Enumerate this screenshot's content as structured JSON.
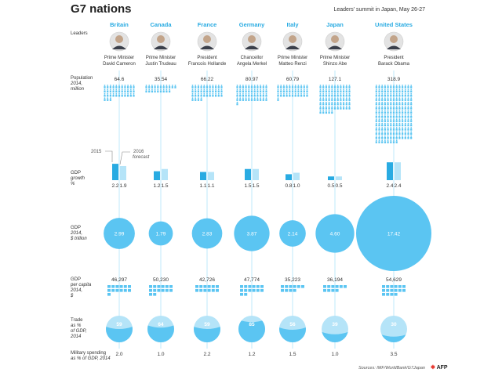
{
  "header": {
    "title": "G7 nations",
    "subtitle": "Leaders' summit in Japan, May 26-27",
    "source": "Sources: IMF/WorldBank/G7Japan",
    "logo": "AFP"
  },
  "row_labels": {
    "leaders": [
      "Leaders"
    ],
    "population": [
      "Population",
      "2014,",
      "million"
    ],
    "growth": [
      "GDP",
      "growth",
      "%"
    ],
    "gdp": [
      "GDP",
      "2014,",
      "$ trillion"
    ],
    "per_capita": [
      "GDP",
      "per capita",
      "2014,",
      "$"
    ],
    "trade": [
      "Trade",
      "as %",
      "of GDP,",
      "2014"
    ],
    "military": [
      "Military spending",
      "as % of GDP, 2014"
    ]
  },
  "growth_legend": {
    "year_a": "2015",
    "year_b": "2016",
    "year_b_note": "forecast"
  },
  "colors": {
    "accent": "#29abe2",
    "circle": "#5bc5f2",
    "light": "#b5e4f8",
    "line": "#bfe8fb",
    "text": "#333333"
  },
  "chart_data": {
    "type": "table",
    "categories": [
      "Britain",
      "Canada",
      "France",
      "Germany",
      "Italy",
      "Japan",
      "United States"
    ],
    "leaders": [
      {
        "title": "Prime Minister",
        "name": "David Cameron"
      },
      {
        "title": "Prime Minister",
        "name": "Justin Trudeau"
      },
      {
        "title": "President",
        "name": "Francois Hollande"
      },
      {
        "title": "Chancellor",
        "name": "Angela Merkel"
      },
      {
        "title": "Prime Minister",
        "name": "Matteo Renzi"
      },
      {
        "title": "Prime Minister",
        "name": "Shinzo Abe"
      },
      {
        "title": "President",
        "name": "Barack Obama"
      }
    ],
    "population_million": [
      64.6,
      35.54,
      66.22,
      80.97,
      60.79,
      127.1,
      318.9
    ],
    "gdp_growth_pct": {
      "2015": [
        2.2,
        1.2,
        1.1,
        1.5,
        0.8,
        0.5,
        2.4
      ],
      "2016": [
        1.9,
        1.5,
        1.1,
        1.5,
        1.0,
        0.5,
        2.4
      ]
    },
    "gdp_trillion_usd": [
      2.99,
      1.79,
      2.83,
      3.87,
      2.14,
      4.6,
      17.42
    ],
    "gdp_per_capita_usd": [
      "46,297",
      "50,230",
      "42,726",
      "47,774",
      "35,223",
      "36,194",
      "54,629"
    ],
    "trade_pct_gdp": [
      59,
      64,
      59,
      85,
      56,
      39,
      30
    ],
    "military_pct_gdp": [
      2.0,
      1.0,
      2.2,
      1.2,
      1.5,
      1.0,
      3.5
    ]
  }
}
